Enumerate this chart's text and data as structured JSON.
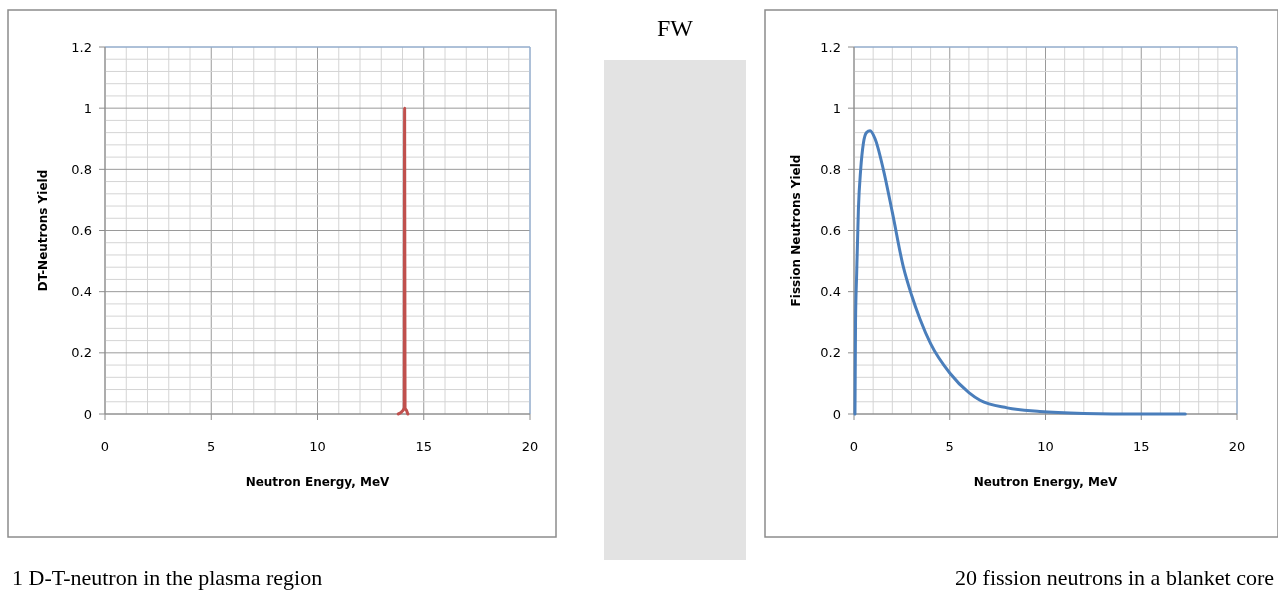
{
  "chart_data": [
    {
      "type": "line",
      "xlabel": "Neutron Energy, MeV",
      "ylabel": "DT-Neutrons Yield",
      "grid": true,
      "xlim": [
        0,
        20
      ],
      "ylim": [
        0,
        1.2
      ],
      "xticks": [
        0,
        {
          "value": 1,
          "label": null
        },
        {
          "value": 2,
          "label": null
        },
        {
          "value": 3,
          "label": null
        },
        {
          "value": 4,
          "label": null
        },
        5,
        {
          "value": 6,
          "label": null
        },
        {
          "value": 7,
          "label": null
        },
        {
          "value": 8,
          "label": null
        },
        {
          "value": 9,
          "label": null
        },
        10,
        {
          "value": 11,
          "label": null
        },
        {
          "value": 12,
          "label": null
        },
        {
          "value": 13,
          "label": null
        },
        {
          "value": 14,
          "label": null
        },
        15,
        {
          "value": 16,
          "label": null
        },
        {
          "value": 17,
          "label": null
        },
        {
          "value": 18,
          "label": null
        },
        {
          "value": 19,
          "label": null
        },
        20
      ],
      "yticks": [
        0,
        {
          "value": 0.04,
          "label": null
        },
        {
          "value": 0.08,
          "label": null
        },
        {
          "value": 0.12,
          "label": null
        },
        {
          "value": 0.16,
          "label": null
        },
        0.2,
        {
          "value": 0.24,
          "label": null
        },
        {
          "value": 0.28,
          "label": null
        },
        {
          "value": 0.32,
          "label": null
        },
        {
          "value": 0.36,
          "label": null
        },
        0.4,
        {
          "value": 0.44,
          "label": null
        },
        {
          "value": 0.48,
          "label": null
        },
        {
          "value": 0.52,
          "label": null
        },
        {
          "value": 0.56,
          "label": null
        },
        0.6,
        {
          "value": 0.64,
          "label": null
        },
        {
          "value": 0.68,
          "label": null
        },
        {
          "value": 0.72,
          "label": null
        },
        {
          "value": 0.76,
          "label": null
        },
        0.8,
        {
          "value": 0.84,
          "label": null
        },
        {
          "value": 0.88,
          "label": null
        },
        {
          "value": 0.92,
          "label": null
        },
        {
          "value": 0.96,
          "label": null
        },
        1,
        {
          "value": 1.04,
          "label": null
        },
        {
          "value": 1.08,
          "label": null
        },
        {
          "value": 1.12,
          "label": null
        },
        {
          "value": 1.16,
          "label": null
        },
        1.2
      ],
      "series": [
        {
          "color": "#c0504d",
          "x": [
            13.8,
            14.0,
            14.08,
            14.1,
            14.12,
            14.2,
            14.25
          ],
          "values": [
            0,
            0.01,
            0.02,
            1,
            0.02,
            0.01,
            0
          ]
        }
      ],
      "annotations": [
        "1 D-T-neutron in the plasma region"
      ]
    },
    {
      "type": "other",
      "title": "FW"
    },
    {
      "type": "line",
      "xlabel": "Neutron Energy, MeV",
      "ylabel": "Fission Neutrons Yield",
      "grid": true,
      "xlim": [
        0,
        20
      ],
      "ylim": [
        0,
        1.2
      ],
      "xticks": [
        0,
        {
          "value": 1,
          "label": null
        },
        {
          "value": 2,
          "label": null
        },
        {
          "value": 3,
          "label": null
        },
        {
          "value": 4,
          "label": null
        },
        5,
        {
          "value": 6,
          "label": null
        },
        {
          "value": 7,
          "label": null
        },
        {
          "value": 8,
          "label": null
        },
        {
          "value": 9,
          "label": null
        },
        10,
        {
          "value": 11,
          "label": null
        },
        {
          "value": 12,
          "label": null
        },
        {
          "value": 13,
          "label": null
        },
        {
          "value": 14,
          "label": null
        },
        15,
        {
          "value": 16,
          "label": null
        },
        {
          "value": 17,
          "label": null
        },
        {
          "value": 18,
          "label": null
        },
        {
          "value": 19,
          "label": null
        },
        20
      ],
      "yticks": [
        0,
        {
          "value": 0.04,
          "label": null
        },
        {
          "value": 0.08,
          "label": null
        },
        {
          "value": 0.12,
          "label": null
        },
        {
          "value": 0.16,
          "label": null
        },
        0.2,
        {
          "value": 0.24,
          "label": null
        },
        {
          "value": 0.28,
          "label": null
        },
        {
          "value": 0.32,
          "label": null
        },
        {
          "value": 0.36,
          "label": null
        },
        0.4,
        {
          "value": 0.44,
          "label": null
        },
        {
          "value": 0.48,
          "label": null
        },
        {
          "value": 0.52,
          "label": null
        },
        {
          "value": 0.56,
          "label": null
        },
        0.6,
        {
          "value": 0.64,
          "label": null
        },
        {
          "value": 0.68,
          "label": null
        },
        {
          "value": 0.72,
          "label": null
        },
        {
          "value": 0.76,
          "label": null
        },
        0.8,
        {
          "value": 0.84,
          "label": null
        },
        {
          "value": 0.88,
          "label": null
        },
        {
          "value": 0.92,
          "label": null
        },
        {
          "value": 0.96,
          "label": null
        },
        1,
        {
          "value": 1.04,
          "label": null
        },
        {
          "value": 1.08,
          "label": null
        },
        {
          "value": 1.12,
          "label": null
        },
        {
          "value": 1.16,
          "label": null
        },
        1.2
      ],
      "series": [
        {
          "color": "#4a7ebb",
          "x": [
            0.05,
            0.08,
            0.14,
            0.23,
            0.35,
            0.49,
            0.65,
            0.84,
            1.1,
            1.53,
            2,
            2.58,
            3,
            3.45,
            4,
            5,
            6,
            6.58,
            8,
            9.7,
            12,
            15,
            17.3
          ],
          "values": [
            0,
            0.3,
            0.46,
            0.67,
            0.8,
            0.885,
            0.92,
            0.926,
            0.9,
            0.8,
            0.66,
            0.48,
            0.39,
            0.31,
            0.23,
            0.134,
            0.07,
            0.045,
            0.02,
            0.008,
            0.002,
            0,
            0
          ]
        }
      ],
      "annotations": [
        "20 fission neutrons in a blanket core"
      ]
    }
  ]
}
